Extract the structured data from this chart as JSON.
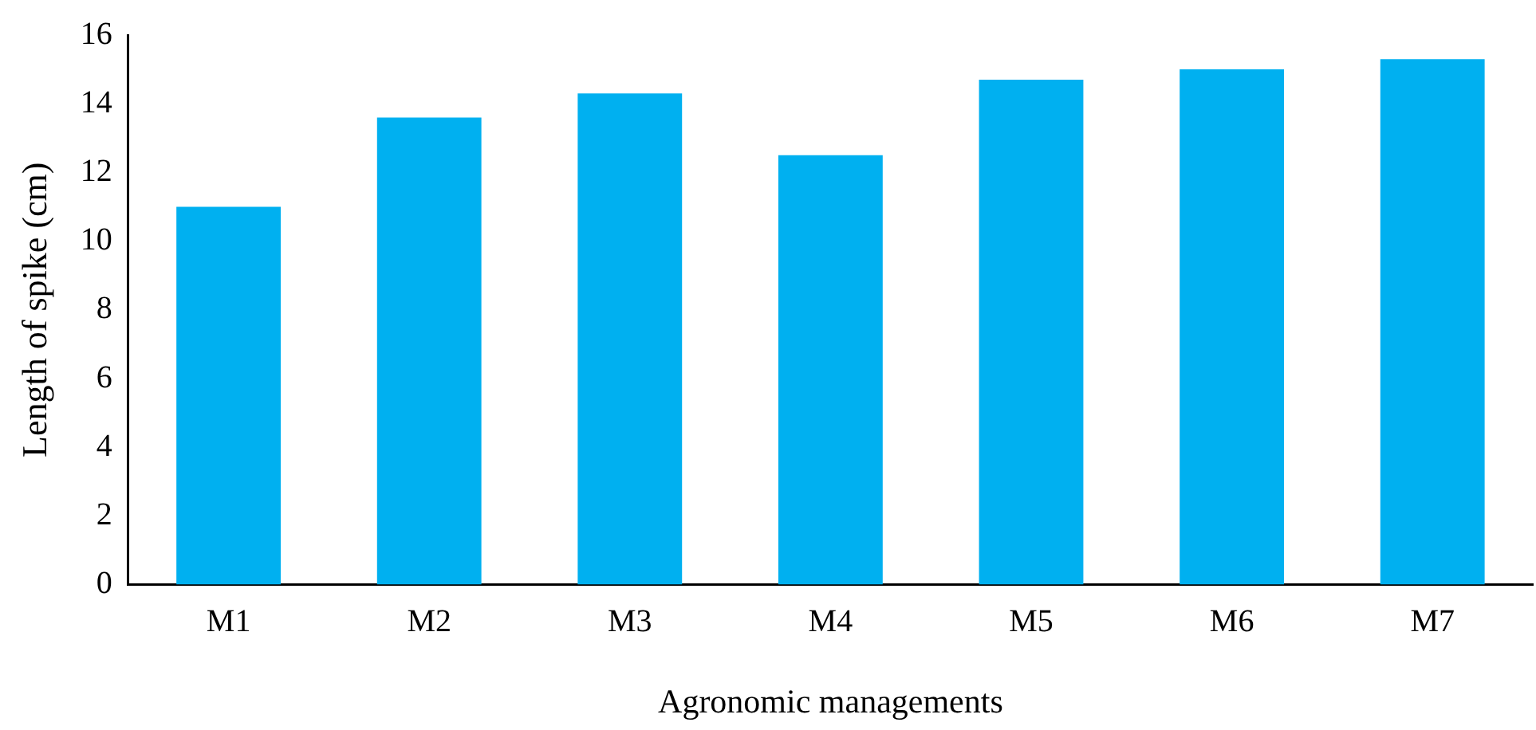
{
  "chart_data": {
    "type": "bar",
    "xlabel": "Agronomic managements",
    "ylabel": "Length of spike (cm)",
    "categories": [
      "M1",
      "M2",
      "M3",
      "M4",
      "M5",
      "M6",
      "M7"
    ],
    "values": [
      11.0,
      13.6,
      14.3,
      12.5,
      14.7,
      15.0,
      15.3
    ],
    "color": "#00b0f0",
    "ylim": [
      0,
      16
    ],
    "yticks": [
      0,
      2,
      4,
      6,
      8,
      10,
      12,
      14,
      16
    ],
    "grid": false,
    "legend": false
  }
}
